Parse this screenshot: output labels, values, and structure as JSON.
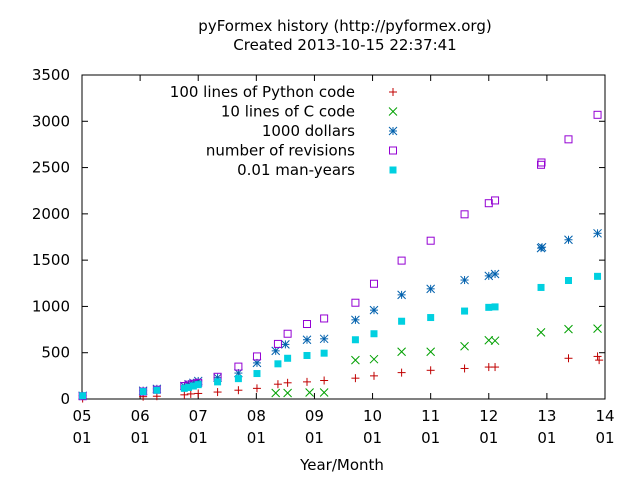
{
  "chart_data": {
    "type": "scatter",
    "title": "pyFormex history (http://pyformex.org)",
    "subtitle": "Created 2013-10-15 22:37:41",
    "xlabel": "Year/Month",
    "ylabel": "",
    "ylim": [
      0,
      3500
    ],
    "xlim": [
      "2005-01",
      "2014-01"
    ],
    "yticks": [
      0,
      500,
      1000,
      1500,
      2000,
      2500,
      3000,
      3500
    ],
    "xticks": [
      {
        "year": "05",
        "month": "01"
      },
      {
        "year": "06",
        "month": "01"
      },
      {
        "year": "07",
        "month": "01"
      },
      {
        "year": "08",
        "month": "01"
      },
      {
        "year": "09",
        "month": "01"
      },
      {
        "year": "10",
        "month": "01"
      },
      {
        "year": "11",
        "month": "01"
      },
      {
        "year": "12",
        "month": "01"
      },
      {
        "year": "13",
        "month": "01"
      },
      {
        "year": "14",
        "month": "01"
      }
    ],
    "grid": false,
    "legend_position": "top-right",
    "series": [
      {
        "name": "100 lines of Python code",
        "marker": "plus",
        "color": "#c00000",
        "points": [
          [
            "2005-01-05",
            5
          ],
          [
            "2006-01-20",
            25
          ],
          [
            "2006-04-15",
            30
          ],
          [
            "2006-10-05",
            45
          ],
          [
            "2006-11-15",
            55
          ],
          [
            "2007-01-01",
            60
          ],
          [
            "2007-05-01",
            75
          ],
          [
            "2007-09-10",
            95
          ],
          [
            "2008-01-05",
            115
          ],
          [
            "2008-05-15",
            160
          ],
          [
            "2008-07-15",
            175
          ],
          [
            "2008-11-15",
            185
          ],
          [
            "2009-03-01",
            200
          ],
          [
            "2009-09-15",
            225
          ],
          [
            "2010-01-10",
            250
          ],
          [
            "2010-07-01",
            285
          ],
          [
            "2011-01-01",
            310
          ],
          [
            "2011-08-01",
            330
          ],
          [
            "2012-01-01",
            345
          ],
          [
            "2012-02-10",
            345
          ],
          [
            "2013-11-25",
            420
          ],
          [
            "2013-05-15",
            440
          ],
          [
            "2013-11-15",
            460
          ]
        ]
      },
      {
        "name": "10 lines of C code",
        "marker": "cross",
        "color": "#00a000",
        "points": [
          [
            "2008-05-01",
            65
          ],
          [
            "2008-07-15",
            65
          ],
          [
            "2008-12-01",
            70
          ],
          [
            "2009-03-01",
            70
          ],
          [
            "2009-09-15",
            420
          ],
          [
            "2010-01-10",
            430
          ],
          [
            "2010-07-01",
            510
          ],
          [
            "2011-01-01",
            510
          ],
          [
            "2011-08-01",
            570
          ],
          [
            "2012-01-01",
            635
          ],
          [
            "2012-02-10",
            630
          ],
          [
            "2012-11-25",
            720
          ],
          [
            "2013-05-15",
            755
          ],
          [
            "2013-11-15",
            760
          ]
        ]
      },
      {
        "name": "1000 dollars",
        "marker": "star",
        "color": "#0060ad",
        "points": [
          [
            "2005-01-05",
            35
          ],
          [
            "2006-01-20",
            90
          ],
          [
            "2006-04-15",
            110
          ],
          [
            "2006-10-05",
            140
          ],
          [
            "2006-11-01",
            160
          ],
          [
            "2006-12-01",
            175
          ],
          [
            "2007-01-01",
            195
          ],
          [
            "2007-05-01",
            230
          ],
          [
            "2007-09-10",
            280
          ],
          [
            "2008-01-05",
            390
          ],
          [
            "2008-05-01",
            520
          ],
          [
            "2008-07-01",
            590
          ],
          [
            "2008-11-15",
            640
          ],
          [
            "2009-03-01",
            650
          ],
          [
            "2009-09-15",
            855
          ],
          [
            "2010-01-10",
            960
          ],
          [
            "2010-07-01",
            1125
          ],
          [
            "2011-01-01",
            1190
          ],
          [
            "2011-08-01",
            1285
          ],
          [
            "2012-01-01",
            1330
          ],
          [
            "2012-02-10",
            1350
          ],
          [
            "2012-11-25",
            1630
          ],
          [
            "2012-12-01",
            1640
          ],
          [
            "2013-05-15",
            1720
          ],
          [
            "2013-11-15",
            1790
          ]
        ]
      },
      {
        "name": "number of revisions",
        "marker": "open-square",
        "color": "#9400d3",
        "points": [
          [
            "2005-01-05",
            30
          ],
          [
            "2006-01-20",
            80
          ],
          [
            "2006-04-15",
            100
          ],
          [
            "2006-10-05",
            140
          ],
          [
            "2006-11-01",
            155
          ],
          [
            "2006-12-01",
            165
          ],
          [
            "2007-01-01",
            175
          ],
          [
            "2007-05-01",
            240
          ],
          [
            "2007-09-10",
            350
          ],
          [
            "2008-01-05",
            460
          ],
          [
            "2008-05-15",
            595
          ],
          [
            "2008-07-15",
            705
          ],
          [
            "2008-11-15",
            810
          ],
          [
            "2009-03-01",
            870
          ],
          [
            "2009-09-15",
            1040
          ],
          [
            "2010-01-10",
            1245
          ],
          [
            "2010-07-01",
            1495
          ],
          [
            "2011-01-01",
            1710
          ],
          [
            "2011-08-01",
            1995
          ],
          [
            "2012-01-01",
            2115
          ],
          [
            "2012-02-10",
            2145
          ],
          [
            "2012-11-25",
            2530
          ],
          [
            "2012-11-28",
            2555
          ],
          [
            "2013-05-15",
            2805
          ],
          [
            "2013-11-15",
            3070
          ]
        ]
      },
      {
        "name": "0.01 man-years",
        "marker": "filled-square",
        "color": "#00d0e0",
        "points": [
          [
            "2005-01-05",
            35
          ],
          [
            "2006-01-20",
            80
          ],
          [
            "2006-04-15",
            95
          ],
          [
            "2006-10-05",
            115
          ],
          [
            "2006-11-01",
            125
          ],
          [
            "2006-12-01",
            140
          ],
          [
            "2007-01-01",
            155
          ],
          [
            "2007-05-01",
            185
          ],
          [
            "2007-09-10",
            220
          ],
          [
            "2008-01-05",
            275
          ],
          [
            "2008-05-15",
            380
          ],
          [
            "2008-07-15",
            440
          ],
          [
            "2008-11-15",
            470
          ],
          [
            "2009-03-01",
            495
          ],
          [
            "2009-09-15",
            640
          ],
          [
            "2010-01-10",
            705
          ],
          [
            "2010-07-01",
            840
          ],
          [
            "2011-01-01",
            880
          ],
          [
            "2011-08-01",
            950
          ],
          [
            "2012-01-01",
            990
          ],
          [
            "2012-02-10",
            995
          ],
          [
            "2012-11-25",
            1205
          ],
          [
            "2013-05-15",
            1280
          ],
          [
            "2013-11-15",
            1325
          ]
        ]
      }
    ]
  }
}
